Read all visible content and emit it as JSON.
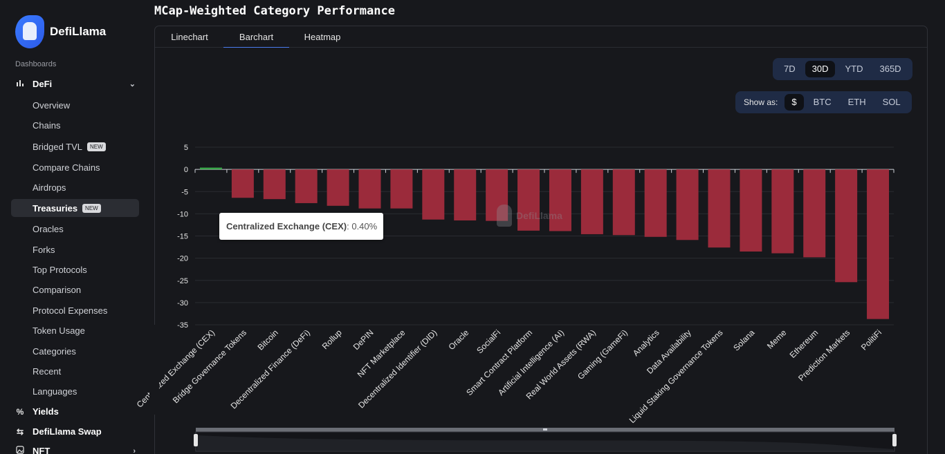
{
  "app": {
    "name": "DefiLlama"
  },
  "sidebar": {
    "section_label": "Dashboards",
    "defi": {
      "label": "DeFi",
      "icon": "bar-chart-icon"
    },
    "items": [
      {
        "label": "Overview"
      },
      {
        "label": "Chains"
      },
      {
        "label": "Bridged TVL",
        "badge": "NEW"
      },
      {
        "label": "Compare Chains"
      },
      {
        "label": "Airdrops"
      },
      {
        "label": "Treasuries",
        "badge": "NEW",
        "active": true
      },
      {
        "label": "Oracles"
      },
      {
        "label": "Forks"
      },
      {
        "label": "Top Protocols"
      },
      {
        "label": "Comparison"
      },
      {
        "label": "Protocol Expenses"
      },
      {
        "label": "Token Usage"
      },
      {
        "label": "Categories"
      },
      {
        "label": "Recent"
      },
      {
        "label": "Languages"
      }
    ],
    "bottom": [
      {
        "label": "Yields",
        "icon": "percent-icon"
      },
      {
        "label": "DefiLlama Swap",
        "icon": "swap-icon"
      },
      {
        "label": "NFT",
        "icon": "image-icon"
      }
    ]
  },
  "main": {
    "title": "MCap-Weighted Category Performance",
    "tabs": [
      {
        "label": "Linechart"
      },
      {
        "label": "Barchart",
        "active": true
      },
      {
        "label": "Heatmap"
      }
    ],
    "periods": [
      "7D",
      "30D",
      "YTD",
      "365D"
    ],
    "selected_period": "30D",
    "show_as_label": "Show as:",
    "denominations": [
      "$",
      "BTC",
      "ETH",
      "SOL"
    ],
    "selected_denomination": "$",
    "tooltip": {
      "name": "Centralized Exchange (CEX)",
      "value": ": 0.40%"
    },
    "watermark": "DefiLlama"
  },
  "colors": {
    "negative": "#9b2b3b",
    "positive": "#3aa84a",
    "accent": "#4a7cf0"
  },
  "chart_data": {
    "type": "bar",
    "ylim": [
      -35,
      5
    ],
    "yticks": [
      5,
      0,
      -5,
      -10,
      -15,
      -20,
      -25,
      -30,
      -35
    ],
    "grid": true,
    "categories": [
      "Centralized Exchange (CEX)",
      "Bridge Governance Tokens",
      "Bitcoin",
      "Decentralized Finance (DeFi)",
      "Rollup",
      "DePIN",
      "NFT Marketplace",
      "Decentralized Identifier (DID)",
      "Oracle",
      "SocialFi",
      "Smart Contract Platform",
      "Artificial Intelligence (AI)",
      "Real World Assets (RWA)",
      "Gaming (GameFi)",
      "Analytics",
      "Data Availability",
      "Liquid Staking Governance Tokens",
      "Solana",
      "Meme",
      "Ethereum",
      "Prediction Markets",
      "PolitiFi"
    ],
    "values": [
      0.4,
      -6.4,
      -6.7,
      -7.6,
      -8.2,
      -8.8,
      -8.8,
      -11.3,
      -11.5,
      -11.6,
      -13.8,
      -13.9,
      -14.6,
      -14.8,
      -15.2,
      -15.9,
      -17.6,
      -18.5,
      -18.9,
      -19.8,
      -25.4,
      -33.7
    ]
  }
}
